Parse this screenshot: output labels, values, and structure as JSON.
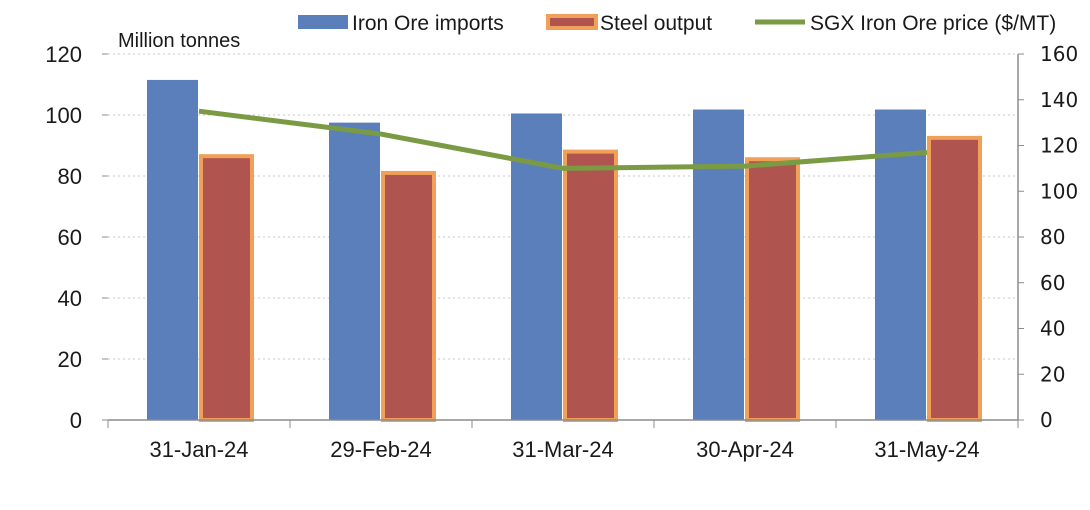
{
  "chart_data": {
    "type": "bar",
    "categories": [
      "31-Jan-24",
      "29-Feb-24",
      "31-Mar-24",
      "30-Apr-24",
      "31-May-24"
    ],
    "series": [
      {
        "name": "Iron Ore imports",
        "kind": "bar",
        "axis": "left",
        "color": "#5b7fbb",
        "values": [
          111.5,
          97.5,
          100.5,
          101.8,
          101.8
        ]
      },
      {
        "name": "Steel output",
        "kind": "bar",
        "axis": "left",
        "color": "#b05450",
        "border": "#f0a058",
        "values": [
          86.5,
          81,
          88,
          85.5,
          92.5
        ]
      },
      {
        "name": "SGX Iron Ore price ($/MT)",
        "kind": "line",
        "axis": "right",
        "color": "#7a9a44",
        "values": [
          135,
          125,
          110,
          111,
          117
        ]
      }
    ],
    "y_left": {
      "label": "Million tonnes",
      "ylim": [
        0,
        120
      ],
      "ticks": [
        "0",
        "20",
        "40",
        "60",
        "80",
        "100",
        "120"
      ]
    },
    "y_right": {
      "ylim": [
        0,
        160
      ],
      "ticks": [
        "0",
        "20",
        "40",
        "60",
        "80",
        "100",
        "120",
        "140",
        "160"
      ]
    },
    "grid": true,
    "legend": "top"
  }
}
